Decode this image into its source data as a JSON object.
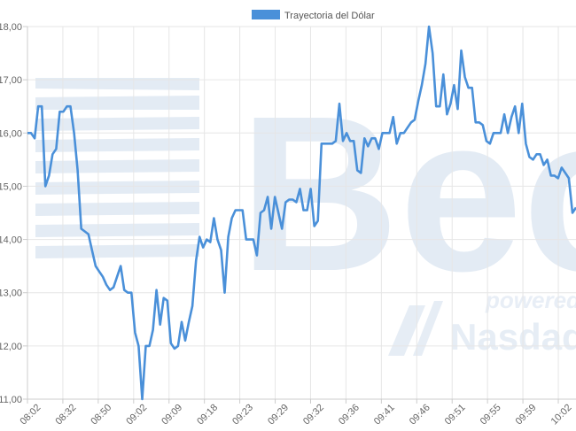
{
  "chart_data": {
    "type": "line",
    "series": [
      {
        "name": "Trayectoria del Dólar",
        "color": "#4a90d9",
        "values": [
          16.0,
          16.0,
          15.9,
          16.5,
          16.5,
          15.0,
          15.2,
          15.6,
          15.7,
          16.4,
          16.4,
          16.5,
          16.5,
          16.0,
          15.3,
          14.2,
          14.15,
          14.1,
          13.8,
          13.5,
          13.4,
          13.3,
          13.15,
          13.05,
          13.1,
          13.3,
          13.5,
          13.05,
          13.0,
          13.0,
          12.25,
          12.0,
          11.0,
          12.0,
          12.0,
          12.3,
          13.05,
          12.4,
          12.9,
          12.85,
          12.05,
          11.95,
          12.0,
          12.45,
          12.1,
          12.45,
          12.75,
          13.6,
          14.05,
          13.85,
          14.0,
          13.95,
          14.4,
          14.0,
          13.8,
          13.0,
          14.05,
          14.4,
          14.55,
          14.55,
          14.55,
          14.0,
          14.0,
          14.0,
          13.7,
          14.5,
          14.55,
          14.8,
          14.2,
          14.8,
          14.5,
          14.2,
          14.7,
          14.75,
          14.75,
          14.7,
          14.95,
          14.55,
          14.55,
          14.95,
          14.25,
          14.35,
          15.8,
          15.8,
          15.8,
          15.8,
          15.85,
          16.55,
          15.85,
          16.0,
          15.85,
          15.85,
          15.3,
          15.25,
          15.9,
          15.75,
          15.9,
          15.9,
          15.7,
          16.0,
          16.0,
          16.0,
          16.3,
          15.8,
          16.0,
          16.0,
          16.1,
          16.2,
          16.25,
          16.6,
          16.9,
          17.3,
          18.0,
          17.5,
          16.5,
          16.5,
          17.1,
          16.35,
          16.55,
          16.9,
          16.45,
          17.55,
          17.05,
          16.85,
          16.85,
          16.2,
          16.2,
          16.15,
          15.85,
          15.8,
          16.0,
          16.0,
          16.0,
          16.35,
          16.0,
          16.3,
          16.5,
          16.0,
          16.55,
          15.8,
          15.55,
          15.5,
          15.6,
          15.6,
          15.4,
          15.5,
          15.2,
          15.2,
          15.15,
          15.35,
          15.25,
          15.15,
          14.5,
          14.6
        ]
      }
    ],
    "xticks": [
      "08:02",
      "08:32",
      "08:50",
      "09:02",
      "09:09",
      "09:18",
      "09:23",
      "09:29",
      "09:32",
      "09:36",
      "09:41",
      "09:46",
      "09:51",
      "09:55",
      "09:59",
      "10:02"
    ],
    "yticks": [
      "11,00",
      "12,00",
      "13,00",
      "14,00",
      "15,00",
      "16,00",
      "17,00",
      "18,00"
    ],
    "ylim": [
      11,
      18
    ],
    "grid": true,
    "legend_position": "top-center"
  },
  "watermark": {
    "brand": "Bec",
    "tagline": "powered b",
    "partner": "Nasdaq"
  }
}
